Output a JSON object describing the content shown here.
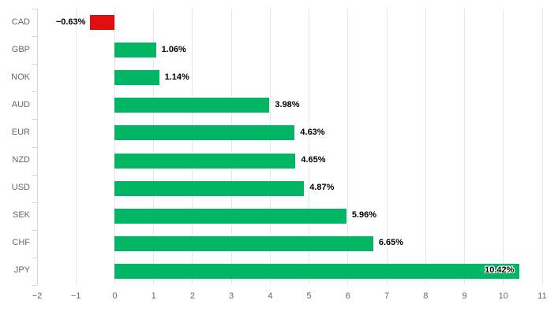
{
  "chart_data": {
    "type": "bar",
    "orientation": "horizontal",
    "title": "",
    "xlabel": "",
    "ylabel": "",
    "categories": [
      "CAD",
      "GBP",
      "NOK",
      "AUD",
      "EUR",
      "NZD",
      "USD",
      "SEK",
      "CHF",
      "JPY"
    ],
    "values": [
      -0.63,
      1.06,
      1.14,
      3.98,
      4.63,
      4.65,
      4.87,
      5.96,
      6.65,
      10.42
    ],
    "data_labels": [
      "−0.63%",
      "1.06%",
      "1.14%",
      "3.98%",
      "4.63%",
      "4.65%",
      "4.87%",
      "5.96%",
      "6.65%",
      "10.42%"
    ],
    "xlim": [
      -2,
      11
    ],
    "xticks": [
      -2,
      -1,
      0,
      1,
      2,
      3,
      4,
      5,
      6,
      7,
      8,
      9,
      10,
      11
    ],
    "xtick_labels": [
      "−2",
      "−1",
      "0",
      "1",
      "2",
      "3",
      "4",
      "5",
      "6",
      "7",
      "8",
      "9",
      "10",
      "11"
    ],
    "grid": "vertical",
    "legend_position": "none",
    "colors": {
      "positive_bar": "#00b563",
      "negative_bar": "#e01010",
      "gridline": "#e6e6e6",
      "axis_line": "#ccd6eb",
      "axis_label": "#666666",
      "data_label": "#000000",
      "data_label_outline": "#ffffff",
      "background": "#ffffff"
    }
  }
}
